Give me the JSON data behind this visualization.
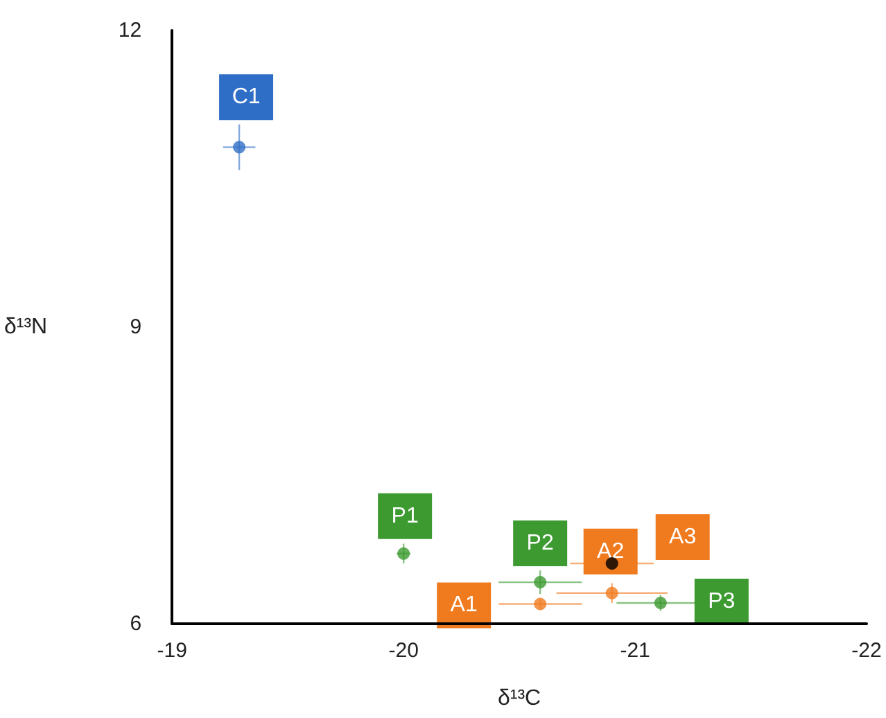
{
  "chart_data": {
    "type": "scatter",
    "xlabel": "δ¹³C",
    "ylabel": "δ¹³N",
    "xlim": [
      -19,
      -22
    ],
    "xticks": [
      -19,
      -20,
      -21,
      -22
    ],
    "ylim": [
      6,
      12
    ],
    "yticks": [
      6,
      9,
      12
    ],
    "grid": false,
    "marker": "circle",
    "series": [
      {
        "color": "#2e6ec6",
        "x": [
          -19.29
        ],
        "values": [
          10.82
        ],
        "xerrors": [
          0.07
        ],
        "errors": [
          0.23
        ]
      },
      {
        "color": "#3c9a30",
        "x": [
          -20.0,
          -20.59,
          -21.11
        ],
        "values": [
          6.71,
          6.42,
          6.21
        ],
        "xerrors": [
          0.03,
          0.18,
          0.19
        ],
        "errors": [
          0.1,
          0.12,
          0.08
        ]
      },
      {
        "color": "#f07a1e",
        "colors": [
          "#f07a1e",
          "#f07a1e",
          "#000000"
        ],
        "x": [
          -20.59,
          -20.9,
          -20.9
        ],
        "values": [
          6.2,
          6.31,
          6.61
        ],
        "xerrors": [
          0.18,
          0.24,
          0.18
        ],
        "errors": [
          0.05,
          0.1,
          0.05
        ]
      }
    ],
    "annotations": [
      {
        "text": "C1",
        "x": -19.29,
        "y": 10.82
      },
      {
        "text": "P1",
        "x": -20.0,
        "y": 6.71
      },
      {
        "text": "P2",
        "x": -20.59,
        "y": 6.42
      },
      {
        "text": "P3",
        "x": -21.11,
        "y": 6.21
      },
      {
        "text": "A1",
        "x": -20.59,
        "y": 6.2
      },
      {
        "text": "A2",
        "x": -20.9,
        "y": 6.31
      },
      {
        "text": "A3",
        "x": -20.9,
        "y": 6.61
      }
    ]
  }
}
